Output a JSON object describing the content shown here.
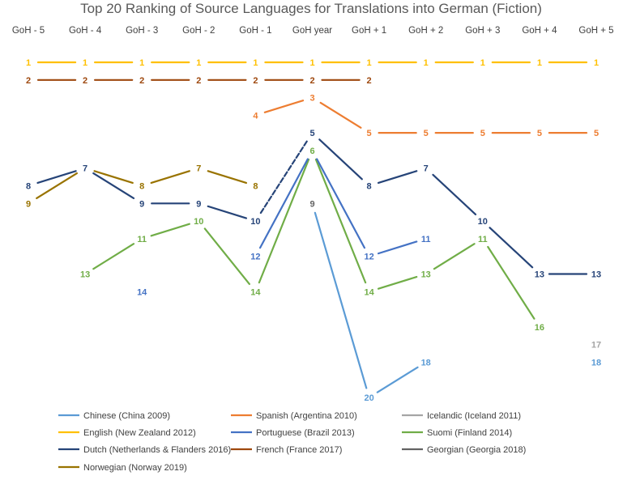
{
  "chart_data": {
    "type": "line",
    "title": "Top 20 Ranking of Source Languages for Translations into German (Fiction)",
    "categories": [
      "GoH - 5",
      "GoH - 4",
      "GoH - 3",
      "GoH - 2",
      "GoH - 1",
      "GoH year",
      "GoH + 1",
      "GoH + 2",
      "GoH + 3",
      "GoH + 4",
      "GoH + 5"
    ],
    "y_axis": {
      "reversed": true,
      "range": [
        1,
        20
      ],
      "visible": false
    },
    "grid": false,
    "legend_position": "bottom",
    "series": [
      {
        "name": "Chinese (China 2009)",
        "color": "#5B9BD5",
        "values": [
          null,
          null,
          null,
          null,
          null,
          9,
          20,
          18,
          null,
          null,
          18
        ]
      },
      {
        "name": "Spanish (Argentina 2010)",
        "color": "#ED7D31",
        "values": [
          null,
          null,
          null,
          null,
          4,
          3,
          5,
          5,
          5,
          5,
          5
        ]
      },
      {
        "name": "Icelandic (Iceland 2011)",
        "color": "#A5A5A5",
        "values": [
          null,
          null,
          null,
          null,
          null,
          null,
          null,
          null,
          null,
          null,
          17
        ]
      },
      {
        "name": "English (New Zealand 2012)",
        "color": "#FFC000",
        "values": [
          1,
          1,
          1,
          1,
          1,
          1,
          1,
          1,
          1,
          1,
          1
        ]
      },
      {
        "name": "Portuguese (Brazil 2013)",
        "color": "#4472C4",
        "values": [
          null,
          null,
          14,
          null,
          null,
          null,
          12,
          11,
          null,
          null,
          null
        ]
      },
      {
        "name": "Suomi (Finland 2014)",
        "color": "#70AD47",
        "values": [
          null,
          13,
          11,
          10,
          14,
          6,
          14,
          13,
          11,
          16,
          null
        ]
      },
      {
        "name": "Dutch (Netherlands & Flanders 2016)",
        "color": "#264478",
        "values": [
          8,
          7,
          9,
          9,
          10,
          5,
          8,
          7,
          10,
          13,
          13
        ]
      },
      {
        "name": "French (France 2017)",
        "color": "#9E480E",
        "values": [
          2,
          2,
          2,
          2,
          2,
          2,
          2,
          null,
          null,
          null,
          null
        ]
      },
      {
        "name": "Georgian (Georgia 2018)",
        "color": "#636363",
        "values": [
          null,
          null,
          null,
          null,
          null,
          9,
          null,
          null,
          null,
          null,
          null
        ]
      },
      {
        "name": "Norwegian (Norway 2019)",
        "color": "#997300",
        "values": [
          9,
          7,
          8,
          7,
          8,
          null,
          null,
          null,
          null,
          null,
          null
        ]
      }
    ],
    "extra_segments": [
      {
        "series": "Portuguese (Brazil 2013)",
        "from": {
          "category": "GoH - 1",
          "value": 12
        },
        "to": {
          "category": "GoH year",
          "value": 6
        }
      },
      {
        "series": "Portuguese (Brazil 2013)",
        "from": {
          "category": "GoH year",
          "value": 6
        },
        "to": {
          "category": "GoH + 1",
          "value": 12
        }
      }
    ],
    "labels_shown": [
      {
        "series": "Chinese (China 2009)",
        "points": [
          {
            "category": "GoH + 1",
            "value": 20
          },
          {
            "category": "GoH + 2",
            "value": 18
          },
          {
            "category": "GoH + 5",
            "value": 18
          }
        ]
      },
      {
        "series": "Spanish (Argentina 2010)",
        "points": [
          {
            "category": "GoH - 1",
            "value": 4
          },
          {
            "category": "GoH year",
            "value": 3
          },
          {
            "category": "GoH + 1",
            "value": 5
          },
          {
            "category": "GoH + 2",
            "value": 5
          },
          {
            "category": "GoH + 3",
            "value": 5
          },
          {
            "category": "GoH + 4",
            "value": 5
          },
          {
            "category": "GoH + 5",
            "value": 5
          }
        ]
      },
      {
        "series": "Icelandic (Iceland 2011)",
        "points": [
          {
            "category": "GoH + 5",
            "value": 17
          }
        ]
      },
      {
        "series": "English (New Zealand 2012)",
        "points": [
          {
            "category": "GoH - 5",
            "value": 1
          },
          {
            "category": "GoH - 4",
            "value": 1
          },
          {
            "category": "GoH - 3",
            "value": 1
          },
          {
            "category": "GoH - 2",
            "value": 1
          },
          {
            "category": "GoH - 1",
            "value": 1
          },
          {
            "category": "GoH year",
            "value": 1
          },
          {
            "category": "GoH + 1",
            "value": 1
          },
          {
            "category": "GoH + 2",
            "value": 1
          },
          {
            "category": "GoH + 3",
            "value": 1
          },
          {
            "category": "GoH + 4",
            "value": 1
          },
          {
            "category": "GoH + 5",
            "value": 1
          }
        ]
      },
      {
        "series": "Portuguese (Brazil 2013)",
        "points": [
          {
            "category": "GoH - 3",
            "value": 14
          },
          {
            "category": "GoH - 1",
            "value": 12
          },
          {
            "category": "GoH + 1",
            "value": 12
          },
          {
            "category": "GoH + 2",
            "value": 11
          }
        ]
      },
      {
        "series": "Suomi (Finland 2014)",
        "points": [
          {
            "category": "GoH - 4",
            "value": 13
          },
          {
            "category": "GoH - 3",
            "value": 11
          },
          {
            "category": "GoH - 2",
            "value": 10
          },
          {
            "category": "GoH - 1",
            "value": 14
          },
          {
            "category": "GoH year",
            "value": 6
          },
          {
            "category": "GoH + 1",
            "value": 14
          },
          {
            "category": "GoH + 2",
            "value": 13
          },
          {
            "category": "GoH + 3",
            "value": 11
          },
          {
            "category": "GoH + 4",
            "value": 16
          }
        ]
      },
      {
        "series": "Dutch (Netherlands & Flanders 2016)",
        "points": [
          {
            "category": "GoH - 5",
            "value": 8
          },
          {
            "category": "GoH - 4",
            "value": 7
          },
          {
            "category": "GoH - 3",
            "value": 9
          },
          {
            "category": "GoH - 2",
            "value": 9
          },
          {
            "category": "GoH - 1",
            "value": 10
          },
          {
            "category": "GoH year",
            "value": 5
          },
          {
            "category": "GoH + 1",
            "value": 8
          },
          {
            "category": "GoH + 2",
            "value": 7
          },
          {
            "category": "GoH + 3",
            "value": 10
          },
          {
            "category": "GoH + 4",
            "value": 13
          },
          {
            "category": "GoH + 5",
            "value": 13
          }
        ]
      },
      {
        "series": "French (France 2017)",
        "points": [
          {
            "category": "GoH - 5",
            "value": 2
          },
          {
            "category": "GoH - 4",
            "value": 2
          },
          {
            "category": "GoH - 3",
            "value": 2
          },
          {
            "category": "GoH - 2",
            "value": 2
          },
          {
            "category": "GoH - 1",
            "value": 2
          },
          {
            "category": "GoH year",
            "value": 2
          },
          {
            "category": "GoH + 1",
            "value": 2
          }
        ]
      },
      {
        "series": "Georgian (Georgia 2018)",
        "points": [
          {
            "category": "GoH year",
            "value": 9
          }
        ]
      },
      {
        "series": "Norwegian (Norway 2019)",
        "points": [
          {
            "category": "GoH - 5",
            "value": 9
          },
          {
            "category": "GoH - 3",
            "value": 8
          },
          {
            "category": "GoH - 2",
            "value": 7
          },
          {
            "category": "GoH - 1",
            "value": 8
          }
        ]
      }
    ],
    "dashed_segments": [
      {
        "series": "Dutch (Netherlands & Flanders 2016)",
        "from": "GoH - 1",
        "to": "GoH year"
      }
    ]
  }
}
